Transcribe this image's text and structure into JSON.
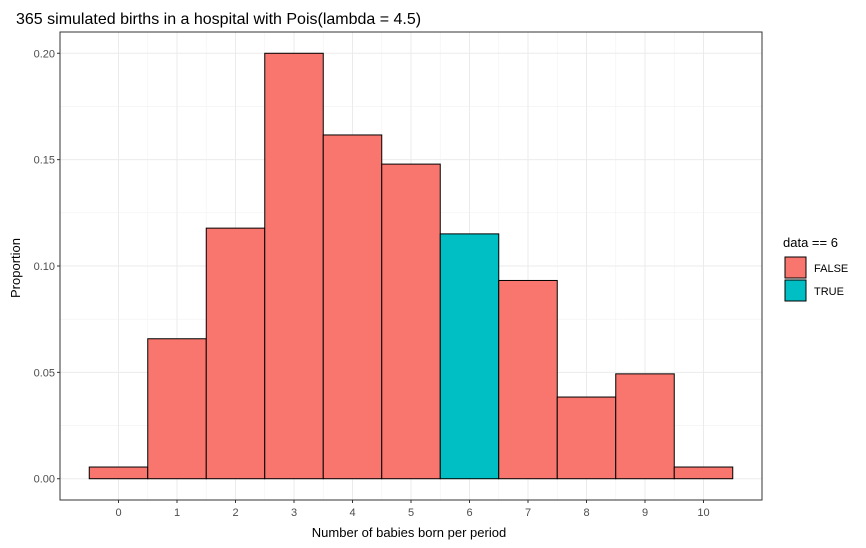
{
  "chart_data": {
    "type": "bar",
    "title": "365 simulated births in a hospital with Pois(lambda = 4.5)",
    "xlabel": "Number of babies born per period",
    "ylabel": "Proportion",
    "categories": [
      "0",
      "1",
      "2",
      "3",
      "4",
      "5",
      "6",
      "7",
      "8",
      "9",
      "10"
    ],
    "x": [
      0,
      1,
      2,
      3,
      4,
      5,
      6,
      7,
      8,
      9,
      10
    ],
    "values": [
      0.0055,
      0.0658,
      0.1178,
      0.2,
      0.1616,
      0.1479,
      0.1151,
      0.0932,
      0.0384,
      0.0493,
      0.0055
    ],
    "fill_group": [
      "FALSE",
      "FALSE",
      "FALSE",
      "FALSE",
      "FALSE",
      "FALSE",
      "TRUE",
      "FALSE",
      "FALSE",
      "FALSE",
      "FALSE"
    ],
    "xlim": [
      -0.5,
      10.5
    ],
    "ylim": [
      0,
      0.2
    ],
    "yticks": [
      "0.00",
      "0.05",
      "0.10",
      "0.15",
      "0.20"
    ],
    "grid": true,
    "legend": {
      "title": "data == 6",
      "position": "right",
      "entries": [
        {
          "label": "FALSE",
          "color": "#F8766D"
        },
        {
          "label": "TRUE",
          "color": "#00BFC4"
        }
      ]
    }
  }
}
